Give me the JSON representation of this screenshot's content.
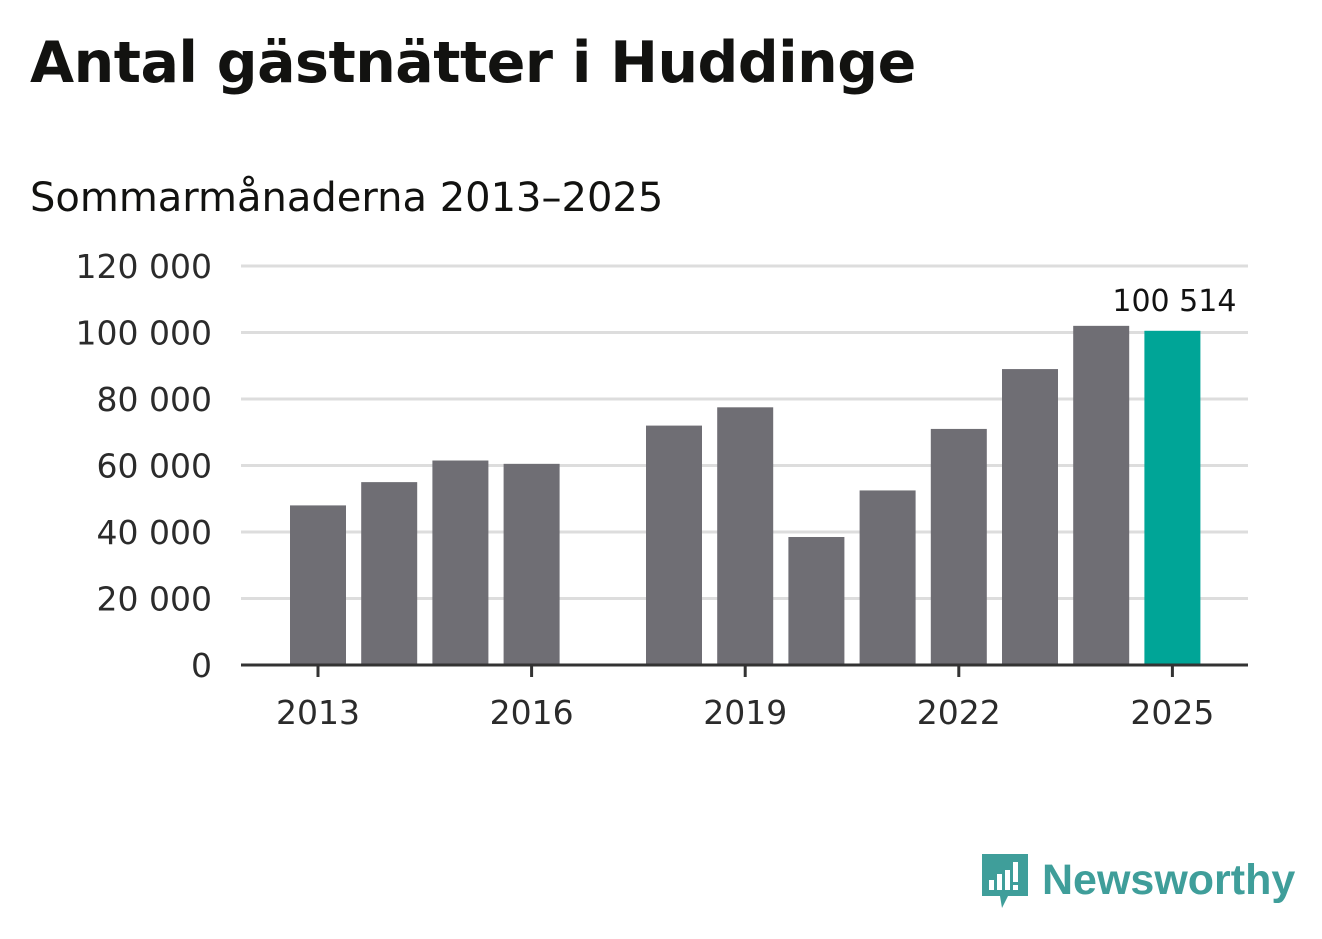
{
  "title": "Antal gästnätter i Huddinge",
  "subtitle": "Sommarmånaderna 2013–2025",
  "brand": {
    "name": "Newsworthy",
    "color": "#3f9e9a",
    "icon": "newsworthy-chat-bars-icon"
  },
  "colors": {
    "bar": "#6f6e74",
    "highlight": "#00a597",
    "grid": "#dddddd",
    "axis": "#333333"
  },
  "chart_data": {
    "type": "bar",
    "categories": [
      "2013",
      "2014",
      "2015",
      "2016",
      "2017",
      "2018",
      "2019",
      "2020",
      "2021",
      "2022",
      "2023",
      "2024",
      "2025"
    ],
    "values": [
      48000,
      55000,
      61500,
      60500,
      null,
      72000,
      77500,
      38500,
      52500,
      71000,
      89000,
      102000,
      100514
    ],
    "highlight_index": 12,
    "highlight_label": "100 514",
    "ylim": [
      0,
      120000
    ],
    "yticks": [
      0,
      20000,
      40000,
      60000,
      80000,
      100000,
      120000
    ],
    "ytick_labels": [
      "0",
      "20 000",
      "40 000",
      "60 000",
      "80 000",
      "100 000",
      "120 000"
    ],
    "xticks": [
      "2013",
      "2016",
      "2019",
      "2022",
      "2025"
    ],
    "grid": true,
    "legend": "none"
  }
}
